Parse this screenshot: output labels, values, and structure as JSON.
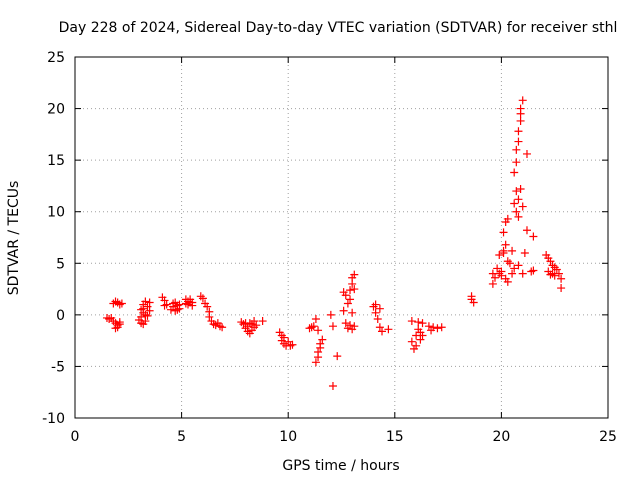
{
  "chart_data": {
    "type": "scatter",
    "title": "Day 228 of 2024, Sidereal Day-to-day VTEC variation (SDTVAR) for receiver sthl",
    "xlabel": "GPS time / hours",
    "ylabel": "SDTVAR / TECUs",
    "xlim": [
      0,
      25
    ],
    "ylim": [
      -10,
      25
    ],
    "xticks": [
      0,
      5,
      10,
      15,
      20,
      25
    ],
    "yticks": [
      -10,
      -5,
      0,
      5,
      10,
      15,
      20,
      25
    ],
    "grid": true,
    "marker": "+",
    "color": "#ff0000",
    "series": [
      {
        "name": "SDTVAR",
        "points": [
          [
            1.5,
            -0.3
          ],
          [
            1.6,
            -0.4
          ],
          [
            1.7,
            -0.3
          ],
          [
            1.8,
            -0.6
          ],
          [
            1.8,
            1.1
          ],
          [
            1.9,
            1.3
          ],
          [
            1.9,
            -0.8
          ],
          [
            2.0,
            -1.0
          ],
          [
            2.0,
            1.2
          ],
          [
            2.1,
            1.0
          ],
          [
            2.1,
            -0.7
          ],
          [
            2.2,
            1.1
          ],
          [
            1.9,
            -1.3
          ],
          [
            2.0,
            -1.2
          ],
          [
            2.1,
            -0.9
          ],
          [
            3.0,
            -0.5
          ],
          [
            3.1,
            -0.2
          ],
          [
            3.1,
            0.5
          ],
          [
            3.2,
            1.0
          ],
          [
            3.2,
            -0.9
          ],
          [
            3.2,
            0.2
          ],
          [
            3.3,
            1.3
          ],
          [
            3.3,
            -0.6
          ],
          [
            3.4,
            0.8
          ],
          [
            3.4,
            -0.1
          ],
          [
            3.5,
            1.2
          ],
          [
            3.5,
            0.4
          ],
          [
            3.3,
            0.0
          ],
          [
            3.2,
            0.6
          ],
          [
            3.1,
            -0.8
          ],
          [
            4.1,
            1.7
          ],
          [
            4.2,
            1.4
          ],
          [
            4.2,
            0.9
          ],
          [
            4.3,
            1.0
          ],
          [
            4.5,
            0.5
          ],
          [
            4.6,
            0.8
          ],
          [
            4.7,
            1.2
          ],
          [
            4.7,
            0.4
          ],
          [
            4.8,
            0.9
          ],
          [
            4.9,
            0.6
          ],
          [
            4.9,
            1.0
          ],
          [
            4.6,
            1.1
          ],
          [
            4.8,
            0.5
          ],
          [
            5.2,
            1.5
          ],
          [
            5.3,
            1.3
          ],
          [
            5.3,
            1.0
          ],
          [
            5.4,
            1.2
          ],
          [
            5.4,
            1.5
          ],
          [
            5.5,
            1.2
          ],
          [
            5.5,
            0.9
          ],
          [
            5.2,
            1.1
          ],
          [
            5.9,
            1.8
          ],
          [
            6.0,
            1.6
          ],
          [
            6.1,
            1.1
          ],
          [
            6.2,
            0.8
          ],
          [
            6.3,
            0.3
          ],
          [
            6.3,
            -0.2
          ],
          [
            6.4,
            -0.6
          ],
          [
            6.5,
            -0.9
          ],
          [
            6.6,
            -1.0
          ],
          [
            6.8,
            -1.1
          ],
          [
            6.9,
            -1.2
          ],
          [
            6.7,
            -0.8
          ],
          [
            7.8,
            -0.7
          ],
          [
            7.9,
            -0.9
          ],
          [
            8.0,
            -1.3
          ],
          [
            8.1,
            -1.6
          ],
          [
            8.2,
            -1.8
          ],
          [
            8.2,
            -0.8
          ],
          [
            8.3,
            -0.9
          ],
          [
            8.3,
            -1.5
          ],
          [
            8.4,
            -1.2
          ],
          [
            8.4,
            -0.6
          ],
          [
            8.5,
            -1.0
          ],
          [
            8.8,
            -0.6
          ],
          [
            8.1,
            -1.1
          ],
          [
            8.0,
            -0.8
          ],
          [
            9.6,
            -1.7
          ],
          [
            9.7,
            -2.0
          ],
          [
            9.7,
            -2.5
          ],
          [
            9.8,
            -2.8
          ],
          [
            9.9,
            -3.0
          ],
          [
            10.0,
            -2.6
          ],
          [
            10.1,
            -3.0
          ],
          [
            10.2,
            -2.9
          ],
          [
            9.8,
            -2.2
          ],
          [
            11.0,
            -1.3
          ],
          [
            11.1,
            -1.2
          ],
          [
            11.2,
            -1.1
          ],
          [
            11.3,
            -0.4
          ],
          [
            11.3,
            -4.6
          ],
          [
            11.4,
            -4.1
          ],
          [
            11.4,
            -3.6
          ],
          [
            11.5,
            -3.2
          ],
          [
            11.5,
            -2.8
          ],
          [
            11.6,
            -2.4
          ],
          [
            11.4,
            -1.5
          ],
          [
            12.0,
            0.0
          ],
          [
            12.1,
            -1.1
          ],
          [
            12.1,
            -6.9
          ],
          [
            12.3,
            -4.0
          ],
          [
            12.6,
            0.4
          ],
          [
            12.6,
            2.2
          ],
          [
            12.7,
            1.9
          ],
          [
            12.7,
            -0.8
          ],
          [
            12.8,
            1.1
          ],
          [
            12.8,
            -1.3
          ],
          [
            12.9,
            2.4
          ],
          [
            12.9,
            -1.0
          ],
          [
            12.9,
            1.5
          ],
          [
            13.0,
            3.0
          ],
          [
            13.0,
            3.6
          ],
          [
            13.0,
            0.2
          ],
          [
            13.1,
            3.9
          ],
          [
            13.1,
            -1.1
          ],
          [
            13.1,
            2.5
          ],
          [
            13.0,
            -1.4
          ],
          [
            14.0,
            0.8
          ],
          [
            14.1,
            1.0
          ],
          [
            14.1,
            0.2
          ],
          [
            14.2,
            -0.4
          ],
          [
            14.3,
            -1.2
          ],
          [
            14.4,
            -1.6
          ],
          [
            14.3,
            0.6
          ],
          [
            14.7,
            -1.4
          ],
          [
            15.8,
            -0.6
          ],
          [
            15.8,
            -2.6
          ],
          [
            15.9,
            -3.3
          ],
          [
            16.0,
            -2.0
          ],
          [
            16.0,
            -3.0
          ],
          [
            16.1,
            -1.4
          ],
          [
            16.1,
            -0.7
          ],
          [
            16.2,
            -2.4
          ],
          [
            16.2,
            -1.7
          ],
          [
            16.3,
            -0.8
          ],
          [
            16.3,
            -2.0
          ],
          [
            16.6,
            -1.1
          ],
          [
            16.7,
            -1.5
          ],
          [
            16.8,
            -1.2
          ],
          [
            17.0,
            -1.3
          ],
          [
            17.2,
            -1.2
          ],
          [
            18.6,
            1.5
          ],
          [
            18.6,
            1.8
          ],
          [
            18.7,
            1.2
          ],
          [
            19.6,
            3.0
          ],
          [
            19.6,
            4.0
          ],
          [
            19.7,
            3.6
          ],
          [
            19.8,
            4.5
          ],
          [
            19.9,
            4.0
          ],
          [
            19.9,
            5.8
          ],
          [
            20.0,
            4.2
          ],
          [
            20.0,
            3.8
          ],
          [
            20.1,
            6.2
          ],
          [
            20.1,
            8.0
          ],
          [
            20.2,
            6.8
          ],
          [
            20.2,
            3.5
          ],
          [
            20.2,
            9.0
          ],
          [
            20.3,
            9.3
          ],
          [
            20.3,
            3.2
          ],
          [
            20.3,
            5.2
          ],
          [
            20.1,
            6.0
          ],
          [
            20.4,
            5.0
          ],
          [
            20.5,
            4.0
          ],
          [
            20.5,
            6.2
          ],
          [
            20.6,
            10.8
          ],
          [
            20.6,
            13.8
          ],
          [
            20.6,
            4.5
          ],
          [
            20.7,
            10.0
          ],
          [
            20.7,
            14.8
          ],
          [
            20.7,
            16.0
          ],
          [
            20.7,
            12.0
          ],
          [
            20.8,
            11.2
          ],
          [
            20.8,
            16.8
          ],
          [
            20.8,
            17.8
          ],
          [
            20.8,
            9.5
          ],
          [
            20.9,
            18.8
          ],
          [
            20.9,
            19.5
          ],
          [
            20.9,
            20.0
          ],
          [
            20.9,
            12.2
          ],
          [
            21.0,
            20.8
          ],
          [
            21.0,
            10.5
          ],
          [
            21.1,
            6.0
          ],
          [
            21.2,
            8.2
          ],
          [
            21.2,
            15.6
          ],
          [
            21.4,
            4.2
          ],
          [
            21.5,
            7.6
          ],
          [
            21.5,
            4.3
          ],
          [
            21.0,
            4.0
          ],
          [
            20.8,
            4.8
          ],
          [
            22.1,
            5.8
          ],
          [
            22.2,
            5.5
          ],
          [
            22.2,
            4.2
          ],
          [
            22.3,
            5.2
          ],
          [
            22.3,
            3.9
          ],
          [
            22.4,
            4.8
          ],
          [
            22.5,
            4.6
          ],
          [
            22.5,
            3.8
          ],
          [
            22.6,
            4.4
          ],
          [
            22.7,
            4.0
          ],
          [
            22.8,
            2.6
          ],
          [
            22.8,
            3.5
          ],
          [
            22.4,
            4.0
          ]
        ]
      }
    ]
  }
}
